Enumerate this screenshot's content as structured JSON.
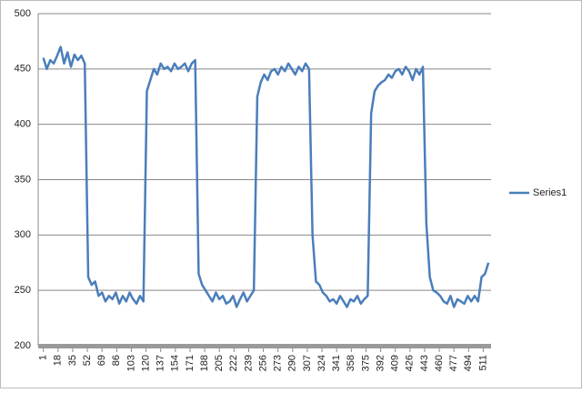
{
  "chart_data": {
    "type": "line",
    "x": [
      1,
      5,
      9,
      13,
      17,
      21,
      25,
      29,
      33,
      37,
      41,
      45,
      49,
      53,
      57,
      61,
      65,
      69,
      73,
      77,
      81,
      85,
      89,
      93,
      97,
      101,
      105,
      109,
      113,
      117,
      121,
      125,
      129,
      133,
      137,
      141,
      145,
      149,
      153,
      157,
      161,
      165,
      169,
      173,
      177,
      181,
      185,
      189,
      193,
      197,
      201,
      205,
      209,
      213,
      217,
      221,
      225,
      229,
      233,
      237,
      241,
      245,
      249,
      253,
      257,
      261,
      265,
      269,
      273,
      277,
      281,
      285,
      289,
      293,
      297,
      301,
      305,
      309,
      313,
      317,
      321,
      325,
      329,
      333,
      337,
      341,
      345,
      349,
      353,
      357,
      361,
      365,
      369,
      373,
      377,
      381,
      385,
      389,
      393,
      397,
      401,
      405,
      409,
      413,
      417,
      421,
      425,
      429,
      433,
      437,
      441,
      445,
      449,
      453,
      457,
      461,
      465,
      469,
      473,
      477,
      481,
      485,
      489,
      493,
      497,
      501,
      505,
      509,
      513,
      517
    ],
    "series": [
      {
        "name": "Series1",
        "color": "#4a7ebb",
        "values": [
          460,
          450,
          458,
          455,
          462,
          470,
          455,
          465,
          452,
          463,
          458,
          462,
          455,
          262,
          255,
          258,
          245,
          248,
          240,
          245,
          242,
          248,
          238,
          245,
          240,
          248,
          242,
          238,
          245,
          240,
          430,
          440,
          450,
          445,
          455,
          450,
          452,
          448,
          455,
          450,
          452,
          455,
          448,
          455,
          458,
          265,
          255,
          250,
          245,
          240,
          248,
          242,
          245,
          238,
          240,
          245,
          235,
          242,
          248,
          240,
          245,
          250,
          425,
          438,
          445,
          440,
          448,
          450,
          445,
          452,
          448,
          455,
          450,
          445,
          452,
          448,
          455,
          450,
          300,
          258,
          255,
          248,
          245,
          240,
          242,
          238,
          245,
          240,
          235,
          242,
          240,
          245,
          238,
          242,
          245,
          410,
          430,
          435,
          438,
          440,
          445,
          442,
          448,
          450,
          445,
          452,
          448,
          440,
          450,
          445,
          452,
          310,
          262,
          250,
          248,
          245,
          240,
          238,
          245,
          235,
          242,
          240,
          238,
          245,
          240,
          245,
          240,
          262,
          265,
          275
        ]
      }
    ],
    "xlim": [
      -5,
      520
    ],
    "xticks": [
      1,
      18,
      35,
      52,
      69,
      86,
      103,
      120,
      137,
      154,
      171,
      188,
      205,
      222,
      239,
      256,
      273,
      290,
      307,
      324,
      341,
      358,
      375,
      392,
      409,
      426,
      443,
      460,
      477,
      494,
      511
    ],
    "ylim": [
      200,
      500
    ],
    "yticks": [
      200,
      250,
      300,
      350,
      400,
      450,
      500
    ],
    "grid": true,
    "legend": "right"
  }
}
